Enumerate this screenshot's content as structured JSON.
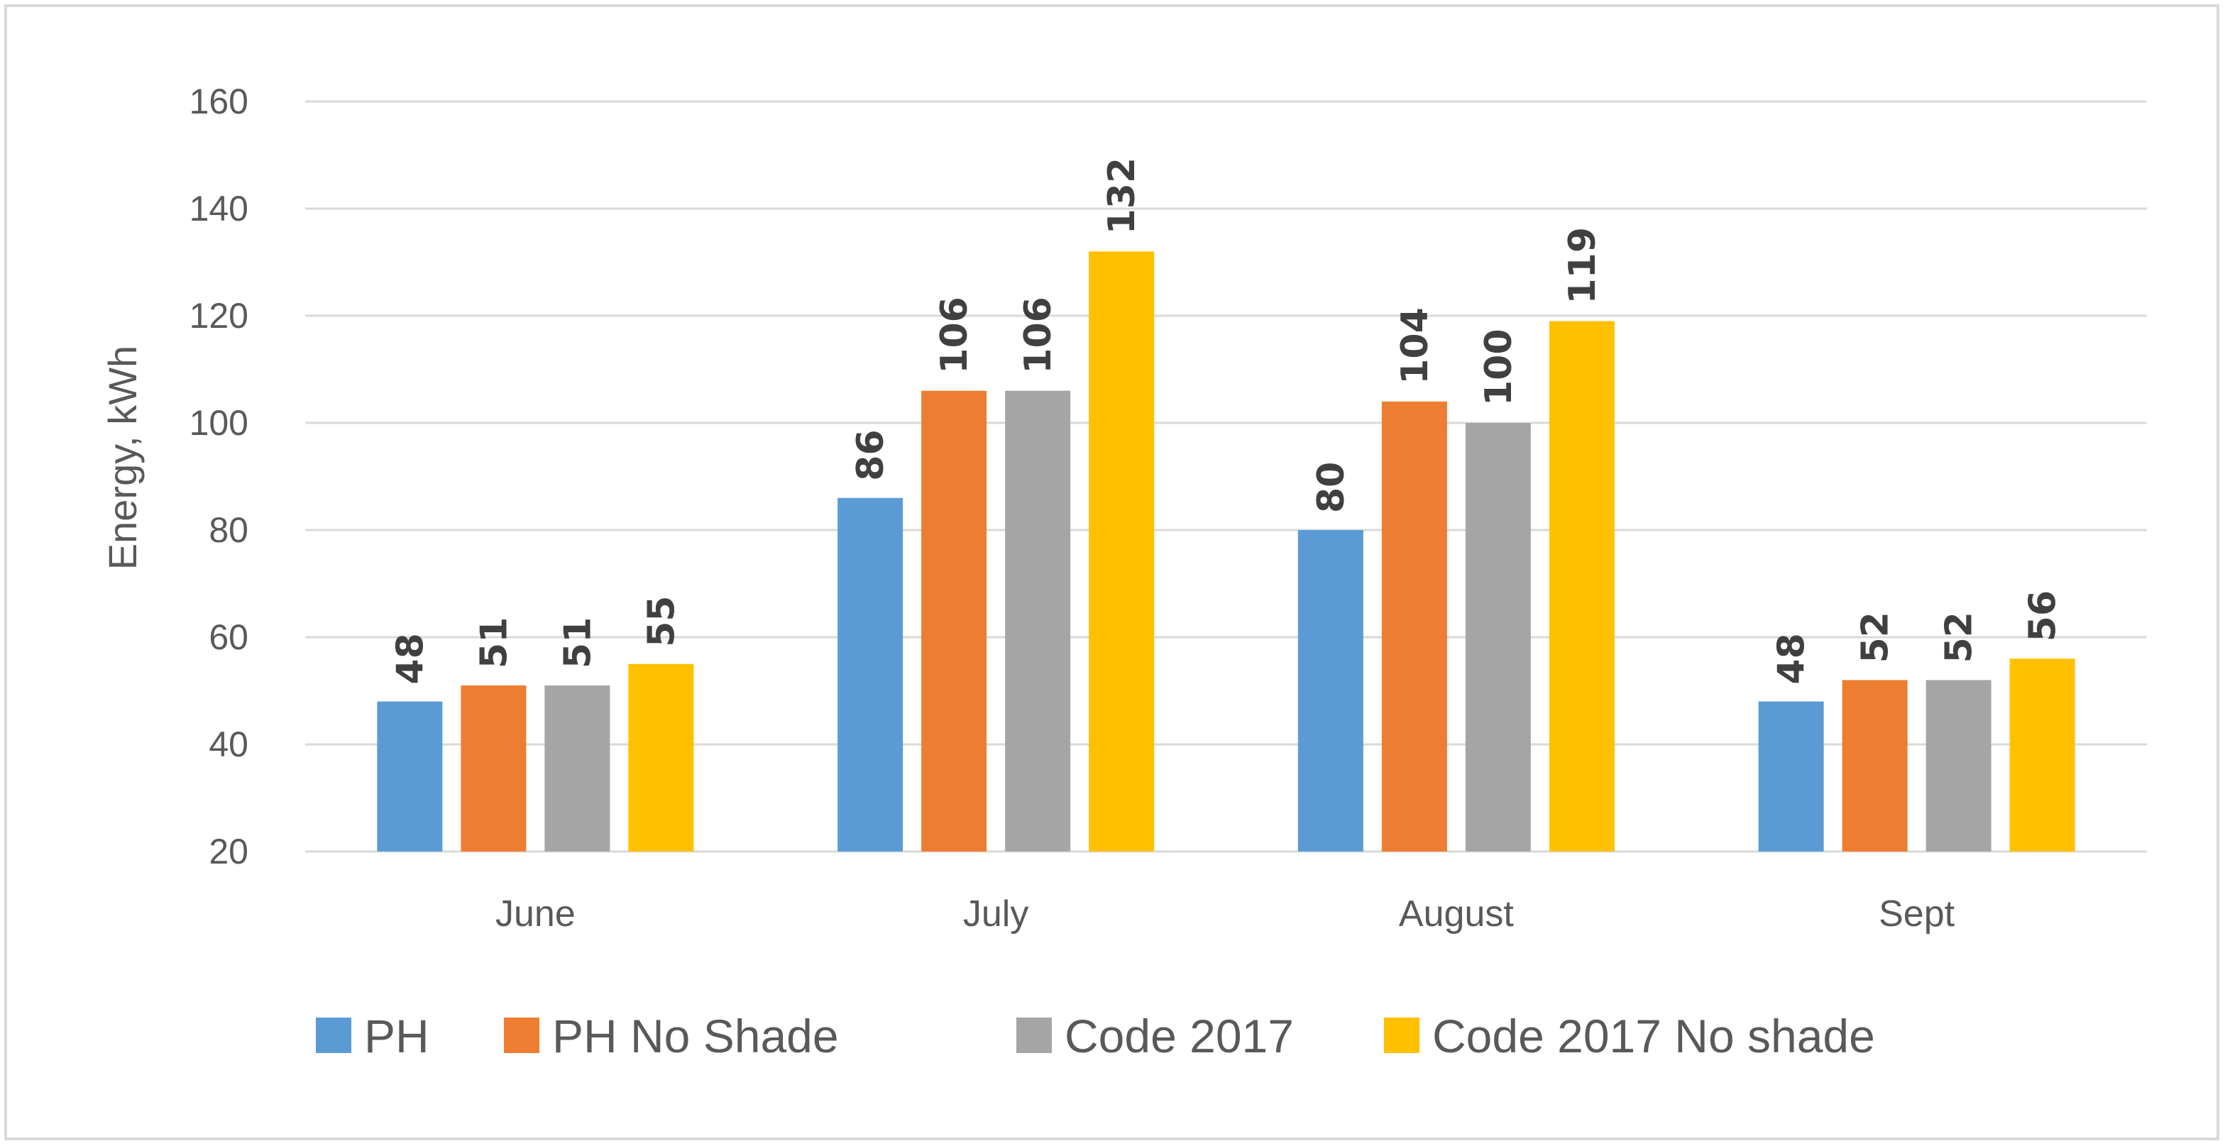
{
  "chart_data": {
    "type": "bar",
    "title": "",
    "xlabel": "",
    "ylabel": "Energy, kWh",
    "ylim": [
      20,
      160
    ],
    "yticks": [
      20,
      40,
      60,
      80,
      100,
      120,
      140,
      160
    ],
    "grid": true,
    "legend_position": "bottom",
    "categories": [
      "June",
      "July",
      "August",
      "Sept"
    ],
    "series": [
      {
        "name": "PH",
        "color": "#5b9bd5",
        "values": [
          48,
          86,
          80,
          48
        ]
      },
      {
        "name": "PH No Shade",
        "color": "#ed7d31",
        "values": [
          51,
          106,
          104,
          52
        ]
      },
      {
        "name": "Code 2017",
        "color": "#a5a5a5",
        "values": [
          51,
          106,
          100,
          52
        ]
      },
      {
        "name": "Code 2017 No shade",
        "color": "#ffc000",
        "values": [
          55,
          132,
          119,
          56
        ]
      }
    ]
  }
}
